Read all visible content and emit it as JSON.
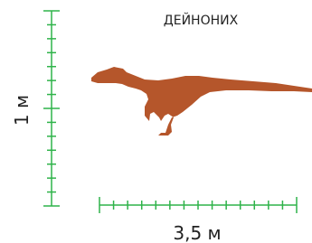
{
  "title": "ДЕЙНОНИХ",
  "height_label": "1 м",
  "length_label": "3,5 м"
}
